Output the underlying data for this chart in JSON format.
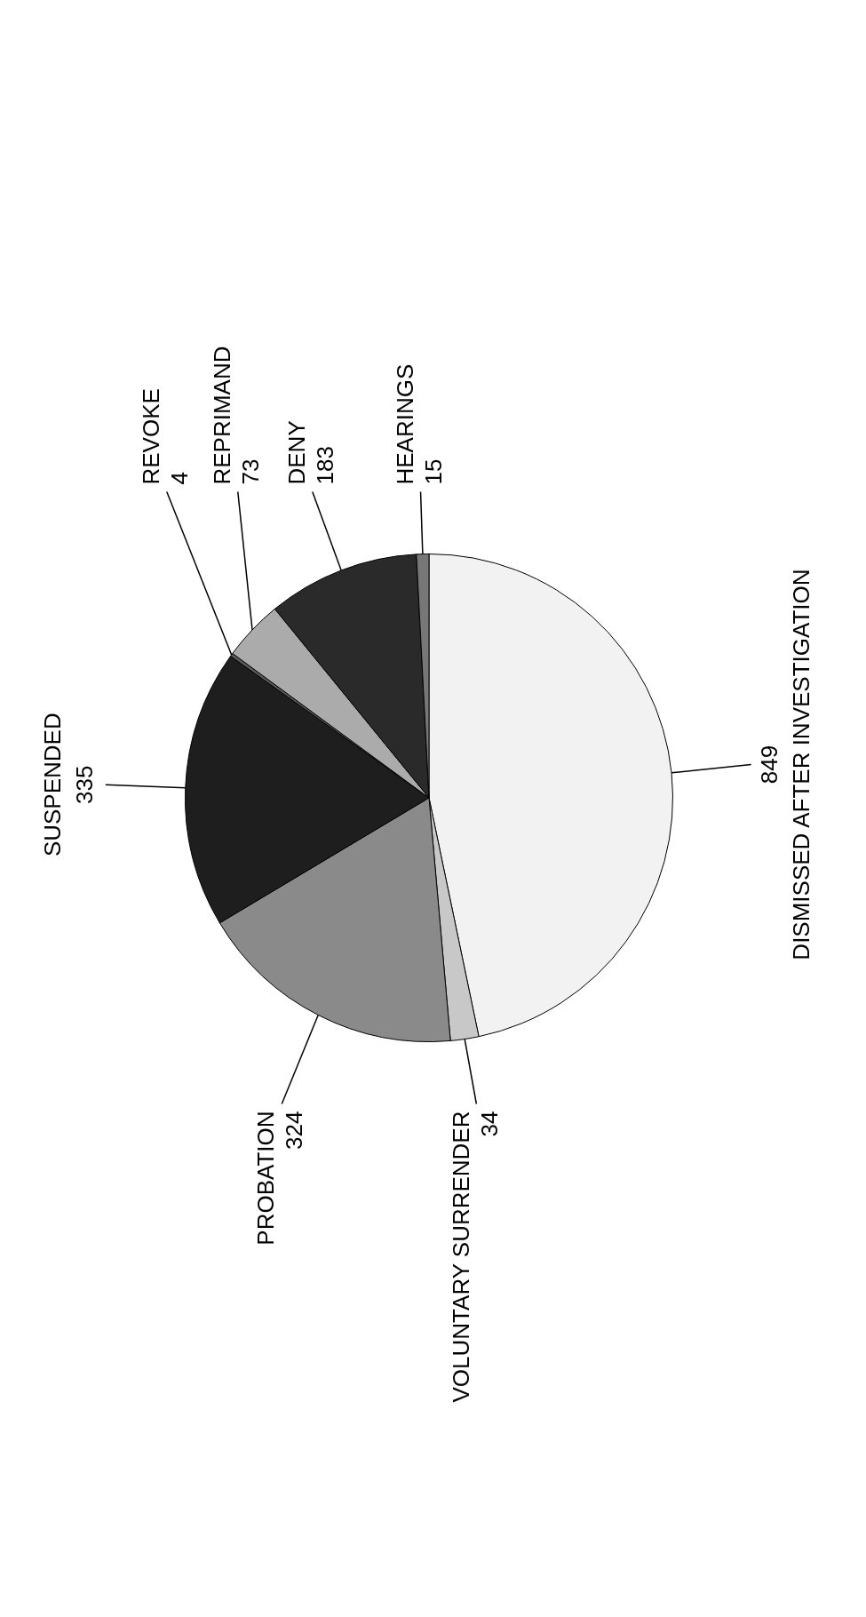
{
  "chart_data": {
    "type": "pie",
    "categories": [
      "DISMISSED AFTER INVESTIGATION",
      "VOLUNTARY SURRENDER",
      "PROBATION",
      "SUSPENDED",
      "REVOKE",
      "REPRIMAND",
      "DENY",
      "HEARINGS"
    ],
    "values": [
      849,
      34,
      324,
      335,
      4,
      73,
      183,
      15
    ],
    "colors": [
      "#f2f2f2",
      "#c8c8c8",
      "#8a8a8a",
      "#1e1e1e",
      "#5a5a5a",
      "#ababab",
      "#2a2a2a",
      "#777777"
    ],
    "data_labels": true,
    "legend": false
  }
}
